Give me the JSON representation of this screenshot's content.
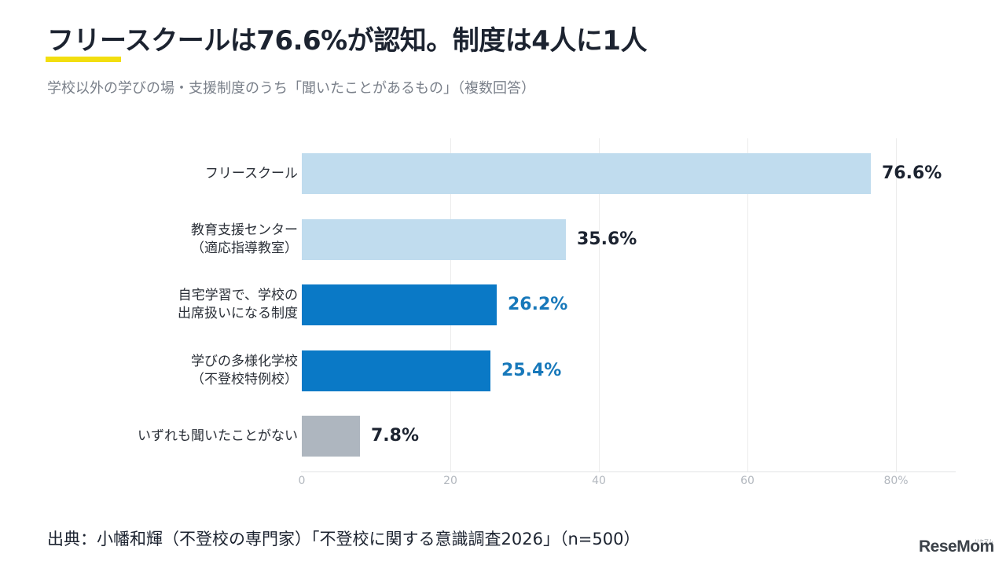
{
  "title": "フリースクールは76.6%が認知。制度は4人に1人",
  "subtitle": "学校以外の学びの場・支援制度のうち「聞いたことがあるもの」（複数回答）",
  "source": "出典：小幡和輝（不登校の専門家）「不登校に関する意識調査2026」（n=500）",
  "logo": {
    "text": "ReseMom",
    "ruby": "リセマム"
  },
  "colors": {
    "light_blue": "#c0dcee",
    "blue": "#0a79c6",
    "gray": "#aeb6bf",
    "value_dark": "#1c2330",
    "value_blue": "#1778ba",
    "accent_yellow": "#f2de0f"
  },
  "chart_data": {
    "type": "bar",
    "orientation": "horizontal",
    "title": "フリースクールは76.6%が認知。制度は4人に1人",
    "subtitle": "学校以外の学びの場・支援制度のうち「聞いたことがあるもの」（複数回答）",
    "categories": [
      [
        "フリースクール"
      ],
      [
        "教育支援センター",
        "（適応指導教室）"
      ],
      [
        "自宅学習で、学校の",
        "出席扱いになる制度"
      ],
      [
        "学びの多様化学校",
        "（不登校特例校）"
      ],
      [
        "いずれも聞いたことがない"
      ]
    ],
    "values": [
      76.6,
      35.6,
      26.2,
      25.4,
      7.8
    ],
    "value_labels": [
      "76.6%",
      "35.6%",
      "26.2%",
      "25.4%",
      "7.8%"
    ],
    "bar_colors": [
      "light_blue",
      "light_blue",
      "blue",
      "blue",
      "gray"
    ],
    "label_colors": [
      "value_dark",
      "value_dark",
      "value_blue",
      "value_blue",
      "value_dark"
    ],
    "xlim": [
      0,
      88
    ],
    "ticks": [
      0,
      20,
      40,
      60,
      80
    ],
    "tick_labels": [
      "0",
      "20",
      "40",
      "60",
      "80%"
    ],
    "grid": true,
    "legend": "none"
  }
}
